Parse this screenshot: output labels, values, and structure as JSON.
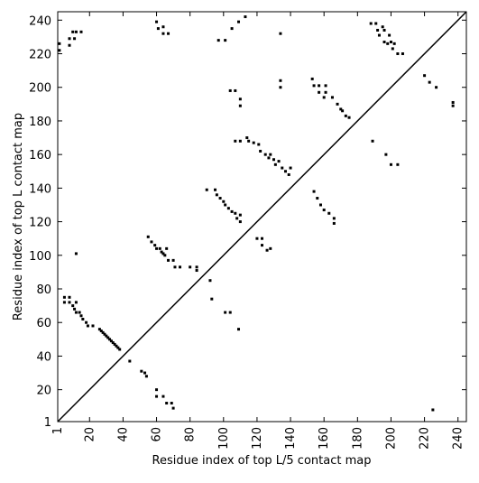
{
  "chart_data": {
    "type": "scatter",
    "xlabel": "Residue index of top L/5 contact map",
    "ylabel": "Residue index of top L contact map",
    "xlim": [
      1,
      245
    ],
    "ylim": [
      1,
      245
    ],
    "xticks": [
      1,
      20,
      40,
      60,
      80,
      100,
      120,
      140,
      160,
      180,
      200,
      220,
      240
    ],
    "yticks": [
      1,
      20,
      40,
      60,
      80,
      100,
      120,
      140,
      160,
      180,
      200,
      220,
      240
    ],
    "color": "#000000",
    "x": [
      5,
      8,
      5,
      8,
      10,
      12,
      11,
      12,
      14,
      15,
      16,
      18,
      19,
      22,
      26,
      27,
      28,
      29,
      30,
      31,
      32,
      33,
      34,
      35,
      36,
      37,
      38,
      44,
      51,
      53,
      54,
      12,
      55,
      57,
      59,
      60,
      62,
      63,
      64,
      65,
      66,
      67,
      70,
      71,
      74,
      80,
      84,
      84,
      60,
      60,
      64,
      66,
      69,
      70,
      90,
      95,
      96,
      98,
      100,
      101,
      103,
      105,
      107,
      108,
      110,
      110,
      92,
      93,
      101,
      104,
      109,
      107,
      110,
      114,
      115,
      118,
      121,
      122,
      125,
      127,
      128,
      130,
      131,
      133,
      135,
      137,
      139,
      140,
      120,
      123,
      123,
      126,
      128,
      154,
      156,
      158,
      160,
      163,
      166,
      166,
      189,
      197,
      200,
      204,
      225,
      2,
      2,
      8,
      8,
      10,
      12,
      11,
      15,
      60,
      61,
      64,
      64,
      67,
      97,
      101,
      105,
      109,
      113,
      134,
      134,
      134,
      104,
      107,
      110,
      110,
      153,
      154,
      157,
      157,
      161,
      161,
      160,
      165,
      168,
      170,
      171,
      173,
      175,
      188,
      191,
      192,
      193,
      195,
      196,
      196,
      198,
      199,
      200,
      201,
      202,
      204,
      207,
      220,
      223,
      227,
      237,
      237
    ],
    "y": [
      75,
      75,
      72,
      72,
      70,
      72,
      68,
      66,
      66,
      64,
      62,
      60,
      58,
      58,
      56,
      55,
      54,
      53,
      52,
      51,
      50,
      49,
      48,
      47,
      46,
      45,
      44,
      37,
      31,
      30,
      28,
      101,
      111,
      108,
      106,
      104,
      104,
      102,
      101,
      100,
      104,
      97,
      97,
      93,
      93,
      93,
      91,
      93,
      16,
      20,
      16,
      12,
      12,
      9,
      139,
      139,
      136,
      134,
      132,
      130,
      128,
      126,
      125,
      122,
      120,
      124,
      85,
      74,
      66,
      66,
      56,
      168,
      168,
      170,
      168,
      167,
      166,
      162,
      160,
      158,
      160,
      157,
      154,
      156,
      152,
      150,
      148,
      152,
      110,
      110,
      106,
      103,
      104,
      138,
      134,
      130,
      127,
      125,
      122,
      119,
      168,
      160,
      154,
      154,
      8,
      222,
      226,
      225,
      229,
      233,
      233,
      229,
      233,
      239,
      235,
      236,
      232,
      232,
      228,
      228,
      235,
      239,
      242,
      232,
      200,
      204,
      198,
      198,
      193,
      189,
      205,
      201,
      201,
      197,
      201,
      197,
      194,
      194,
      190,
      187,
      186,
      183,
      182,
      238,
      238,
      234,
      231,
      236,
      234,
      227,
      226,
      231,
      227,
      223,
      226,
      220,
      220,
      207,
      203,
      200,
      191,
      189
    ]
  }
}
